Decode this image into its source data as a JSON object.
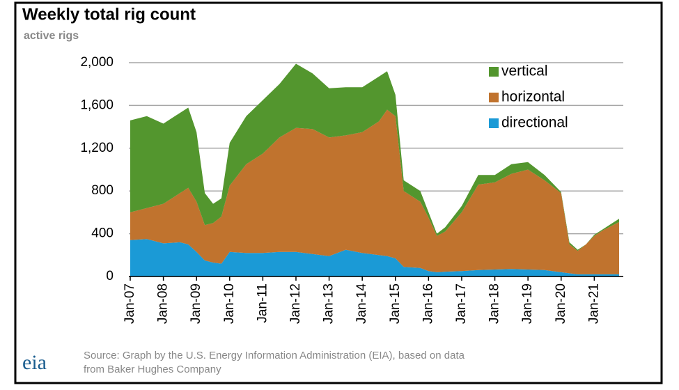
{
  "chart_data": {
    "type": "stacked_area",
    "title": "Weekly total rig count",
    "y_label": "active rigs",
    "x": [
      "2007-01",
      "2007-07",
      "2008-01",
      "2008-07",
      "2008-10",
      "2009-01",
      "2009-04",
      "2009-07",
      "2009-10",
      "2010-01",
      "2010-07",
      "2011-01",
      "2011-07",
      "2012-01",
      "2012-07",
      "2013-01",
      "2013-07",
      "2014-01",
      "2014-07",
      "2014-10",
      "2015-01",
      "2015-04",
      "2015-10",
      "2016-01",
      "2016-04",
      "2016-07",
      "2017-01",
      "2017-07",
      "2018-01",
      "2018-07",
      "2019-01",
      "2019-07",
      "2020-01",
      "2020-04",
      "2020-07",
      "2020-10",
      "2021-01",
      "2021-04",
      "2021-07",
      "2021-10"
    ],
    "series": [
      {
        "name": "vertical",
        "color": "#53962e",
        "values": [
          860,
          860,
          750,
          750,
          750,
          650,
          300,
          180,
          170,
          400,
          450,
          500,
          500,
          600,
          520,
          460,
          450,
          420,
          420,
          360,
          200,
          100,
          100,
          50,
          20,
          40,
          60,
          90,
          70,
          90,
          70,
          50,
          10,
          20,
          10,
          0,
          10,
          10,
          20,
          30
        ]
      },
      {
        "name": "horizontal",
        "color": "#c0732e",
        "values": [
          260,
          290,
          370,
          460,
          530,
          470,
          330,
          370,
          440,
          620,
          830,
          930,
          1070,
          1160,
          1170,
          1110,
          1070,
          1130,
          1250,
          1370,
          1330,
          710,
          620,
          500,
          340,
          375,
          550,
          800,
          815,
          890,
          935,
          840,
          740,
          270,
          220,
          280,
          360,
          410,
          450,
          490
        ]
      },
      {
        "name": "directional",
        "color": "#1b9ad6",
        "values": [
          340,
          350,
          310,
          320,
          300,
          230,
          150,
          130,
          120,
          230,
          220,
          220,
          230,
          230,
          210,
          190,
          250,
          220,
          200,
          190,
          170,
          90,
          80,
          50,
          40,
          45,
          50,
          60,
          65,
          70,
          65,
          60,
          40,
          30,
          20,
          20,
          20,
          20,
          20,
          20
        ]
      }
    ],
    "xlim": [
      "2007-01",
      "2021-11"
    ],
    "xticks": [
      {
        "value": "2007-01",
        "label": "Jan-07"
      },
      {
        "value": "2008-01",
        "label": "Jan-08"
      },
      {
        "value": "2009-01",
        "label": "Jan-09"
      },
      {
        "value": "2010-01",
        "label": "Jan-10"
      },
      {
        "value": "2011-01",
        "label": "Jan-11"
      },
      {
        "value": "2012-01",
        "label": "Jan-12"
      },
      {
        "value": "2013-01",
        "label": "Jan-13"
      },
      {
        "value": "2014-01",
        "label": "Jan-14"
      },
      {
        "value": "2015-01",
        "label": "Jan-15"
      },
      {
        "value": "2016-01",
        "label": "Jan-16"
      },
      {
        "value": "2017-01",
        "label": "Jan-17"
      },
      {
        "value": "2018-01",
        "label": "Jan-18"
      },
      {
        "value": "2019-01",
        "label": "Jan-19"
      },
      {
        "value": "2020-01",
        "label": "Jan-20"
      },
      {
        "value": "2021-01",
        "label": "Jan-21"
      }
    ],
    "ylim": [
      0,
      2000
    ],
    "yticks": [
      0,
      400,
      800,
      {
        "value": 1200,
        "label": "1,200"
      },
      {
        "value": 1600,
        "label": "1,600"
      },
      {
        "value": 2000,
        "label": "2,000"
      }
    ],
    "grid": true,
    "legend": "top-right",
    "source": [
      "Source: Graph by the U.S. Energy Information Administration (EIA), based on data",
      "from Baker Hughes Company"
    ],
    "logo": "eia"
  }
}
